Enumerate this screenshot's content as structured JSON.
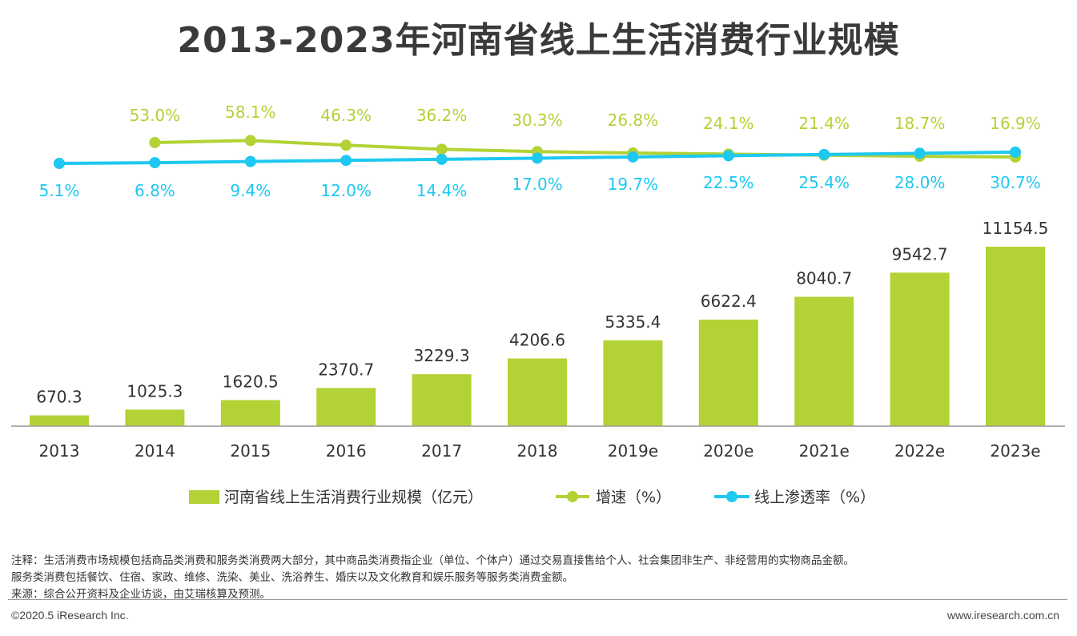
{
  "title": "2013-2023年河南省线上生活消费行业规模",
  "chart_data": {
    "type": "bar",
    "categories": [
      "2013",
      "2014",
      "2015",
      "2016",
      "2017",
      "2018",
      "2019e",
      "2020e",
      "2021e",
      "2022e",
      "2023e"
    ],
    "bar_series": {
      "name": "河南省线上生活消费行业规模（亿元）",
      "values": [
        670.3,
        1025.3,
        1620.5,
        2370.7,
        3229.3,
        4206.6,
        5335.4,
        6622.4,
        8040.7,
        9542.7,
        11154.5
      ],
      "labels": [
        "670.3",
        "1025.3",
        "1620.5",
        "2370.7",
        "3229.3",
        "4206.6",
        "5335.4",
        "6622.4",
        "8040.7",
        "9542.7",
        "11154.5"
      ],
      "color": "#b2d235"
    },
    "growth_series": {
      "name": "增速（%）",
      "values": [
        null,
        53.0,
        58.1,
        46.3,
        36.2,
        30.3,
        26.8,
        24.1,
        21.4,
        18.7,
        16.9
      ],
      "labels": [
        "",
        "53.0%",
        "58.1%",
        "46.3%",
        "36.2%",
        "30.3%",
        "26.8%",
        "24.1%",
        "21.4%",
        "18.7%",
        "16.9%"
      ],
      "color": "#b2d235"
    },
    "penetration_series": {
      "name": "线上渗透率（%）",
      "values": [
        5.1,
        6.8,
        9.4,
        12.0,
        14.4,
        17.0,
        19.7,
        22.5,
        25.4,
        28.0,
        30.7
      ],
      "labels": [
        "5.1%",
        "6.8%",
        "9.4%",
        "12.0%",
        "14.4%",
        "17.0%",
        "19.7%",
        "22.5%",
        "25.4%",
        "28.0%",
        "30.7%"
      ],
      "color": "#1ec8f0"
    },
    "legend_position": "bottom"
  },
  "notes": {
    "line1": "注释：生活消费市场规模包括商品类消费和服务类消费两大部分，其中商品类消费指企业（单位、个体户）通过交易直接售给个人、社会集团非生产、非经营用的实物商品金额。",
    "line2": "服务类消费包括餐饮、住宿、家政、维修、洗染、美业、洗浴养生、婚庆以及文化教育和娱乐服务等服务类消费金额。",
    "line3": "来源：综合公开资料及企业访谈，由艾瑞核算及预测。"
  },
  "footer": {
    "copyright": "©2020.5 iResearch Inc.",
    "website": "www.iresearch.com.cn"
  }
}
